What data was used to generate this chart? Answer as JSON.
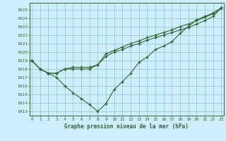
{
  "title": "Graphe pression niveau de la mer (hPa)",
  "bg_color": "#cceeff",
  "grid_color": "#99cccc",
  "line_color": "#336633",
  "marker": "+",
  "xlim": [
    -0.3,
    23.3
  ],
  "ylim": [
    1012.5,
    1025.8
  ],
  "xticks": [
    0,
    1,
    2,
    3,
    4,
    5,
    6,
    7,
    8,
    9,
    10,
    11,
    12,
    13,
    14,
    15,
    16,
    17,
    18,
    19,
    20,
    21,
    22,
    23
  ],
  "yticks": [
    1013,
    1014,
    1015,
    1016,
    1017,
    1018,
    1019,
    1020,
    1021,
    1022,
    1023,
    1024,
    1025
  ],
  "series": [
    [
      1019.0,
      1018.0,
      1017.5,
      1017.0,
      1016.0,
      1015.2,
      1014.5,
      1013.8,
      1013.0,
      1013.9,
      1015.6,
      1016.5,
      1017.5,
      1018.8,
      1019.4,
      1020.3,
      1020.7,
      1021.2,
      1022.2,
      1023.0,
      1023.8,
      1024.2,
      1024.6,
      1025.2
    ],
    [
      1019.0,
      1018.0,
      1017.5,
      1017.5,
      1018.0,
      1018.0,
      1018.0,
      1018.0,
      1018.5,
      1019.5,
      1020.0,
      1020.3,
      1020.7,
      1021.0,
      1021.4,
      1021.7,
      1022.0,
      1022.3,
      1022.6,
      1022.9,
      1023.3,
      1023.7,
      1024.2,
      1025.2
    ],
    [
      1019.0,
      1018.0,
      1017.5,
      1017.5,
      1018.0,
      1018.2,
      1018.2,
      1018.2,
      1018.5,
      1019.8,
      1020.2,
      1020.6,
      1021.0,
      1021.3,
      1021.7,
      1022.0,
      1022.3,
      1022.6,
      1023.0,
      1023.3,
      1023.7,
      1024.1,
      1024.5,
      1025.2
    ]
  ]
}
